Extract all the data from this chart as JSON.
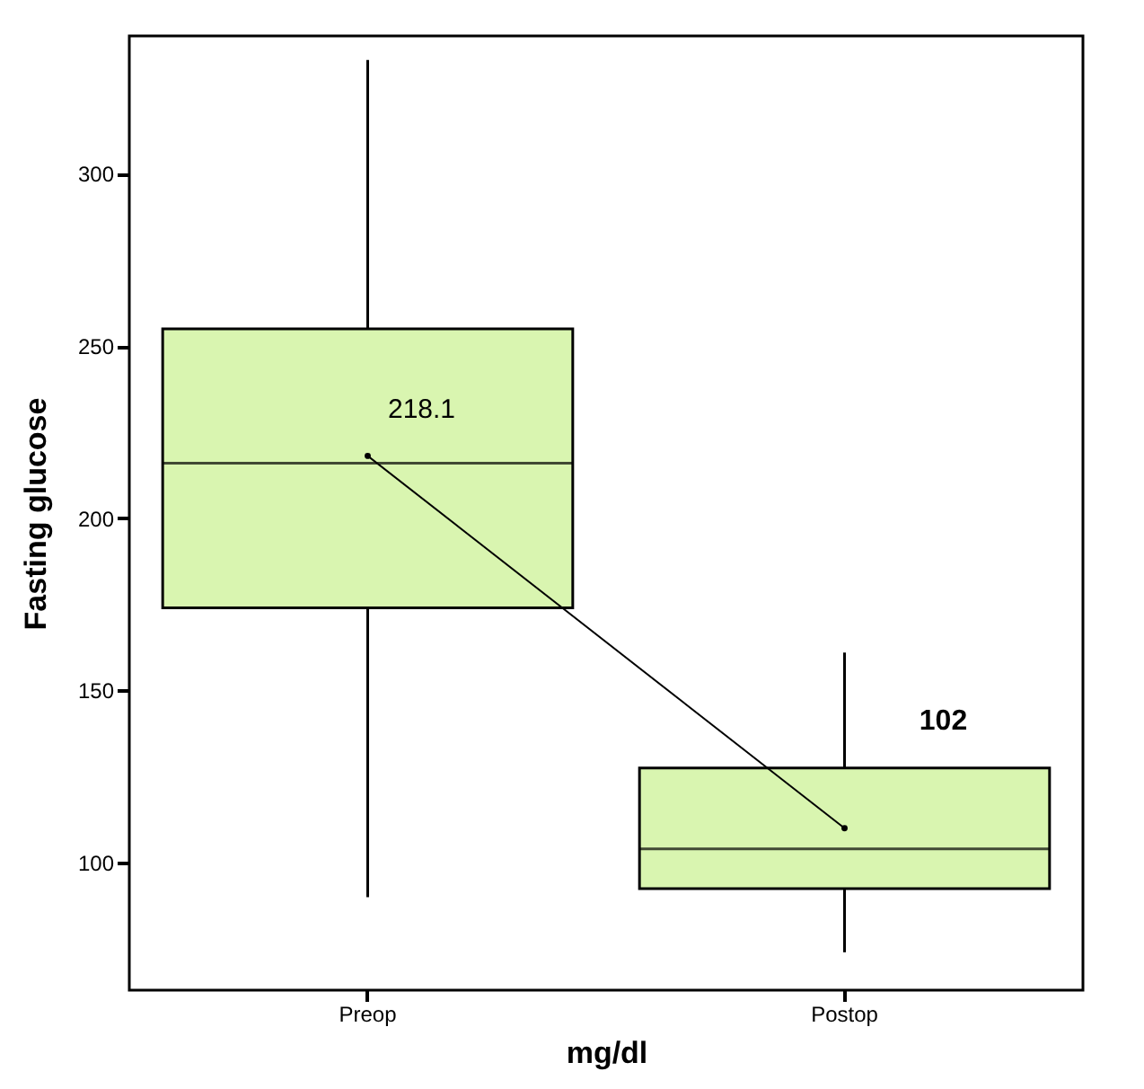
{
  "chart_data": {
    "type": "box",
    "xlabel": "mg/dl",
    "ylabel": "Fasting glucose",
    "categories": [
      "Preop",
      "Postop"
    ],
    "color": "#d9f5b0",
    "boxes": [
      {
        "low": 90,
        "q1": 174,
        "median": 216,
        "q3": 255,
        "high": 333,
        "mean": 218.1
      },
      {
        "low": 74,
        "q1": 92.5,
        "median": 104,
        "q3": 127.5,
        "high": 161,
        "mean": 110
      }
    ],
    "series": [
      {
        "type": "line",
        "color": "#000000",
        "x": [
          "Preop",
          "Postop"
        ],
        "values": [
          218.1,
          110
        ]
      }
    ],
    "ylim": [
      63,
      340
    ],
    "yticks": [
      100,
      150,
      200,
      250,
      300
    ],
    "annotations": [
      "218.1",
      "102"
    ]
  }
}
